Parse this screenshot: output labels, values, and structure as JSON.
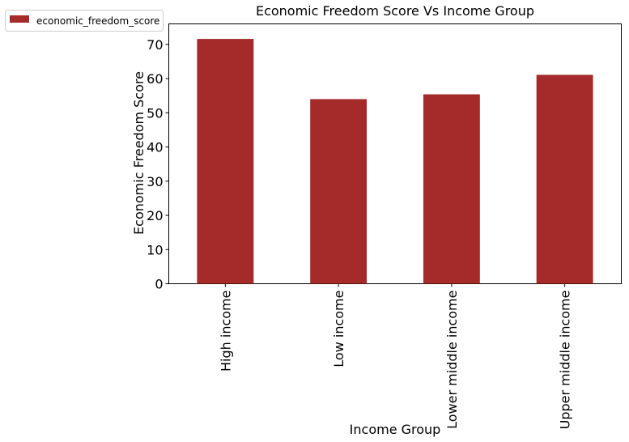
{
  "chart_data": {
    "type": "bar",
    "title": "Economic Freedom Score Vs Income Group",
    "xlabel": "Income Group",
    "ylabel": "Economic Freedom Score",
    "categories": [
      "High income",
      "Low income",
      "Lower middle income",
      "Upper middle income"
    ],
    "series": [
      {
        "name": "economic_freedom_score",
        "values": [
          71.6,
          54.0,
          55.4,
          61.1
        ],
        "color": "#a52a2a"
      }
    ],
    "ylim": [
      0,
      76
    ],
    "yticks": [
      0,
      10,
      20,
      30,
      40,
      50,
      60,
      70
    ],
    "grid": false,
    "legend_position": "top-left outside"
  }
}
